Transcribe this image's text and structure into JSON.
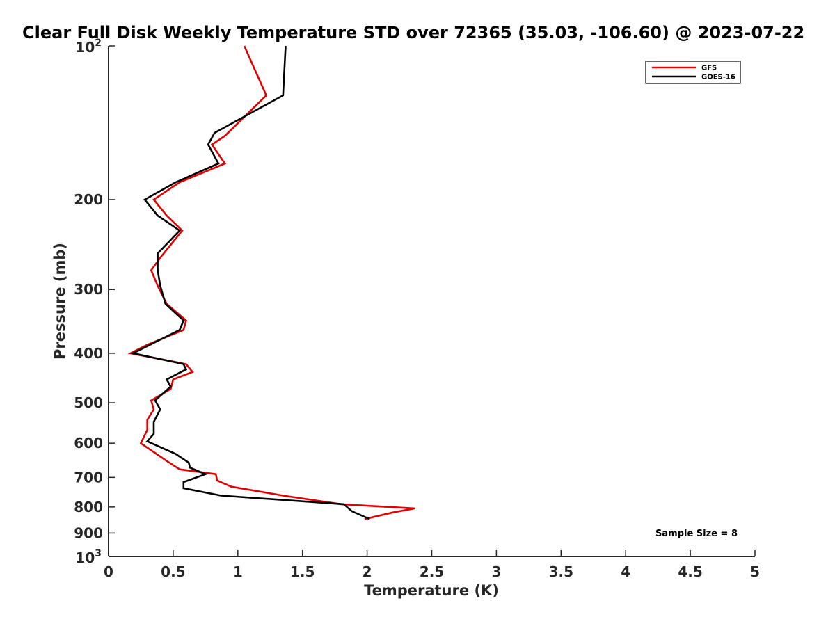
{
  "chart_data": {
    "type": "line",
    "title": "Clear Full Disk Weekly Temperature STD over 72365 (35.03, -106.60) @ 2023-07-22",
    "xlabel": "Temperature (K)",
    "ylabel": "Pressure (mb)",
    "xlim": [
      0,
      5
    ],
    "ylim": [
      100,
      1000
    ],
    "y_scale": "log",
    "y_reversed": true,
    "grid": false,
    "legend_position": "top-right",
    "x_ticks": [
      {
        "value": 0,
        "label": "0"
      },
      {
        "value": 0.5,
        "label": "0.5"
      },
      {
        "value": 1,
        "label": "1"
      },
      {
        "value": 1.5,
        "label": "1.5"
      },
      {
        "value": 2,
        "label": "2"
      },
      {
        "value": 2.5,
        "label": "2.5"
      },
      {
        "value": 3,
        "label": "3"
      },
      {
        "value": 3.5,
        "label": "3.5"
      },
      {
        "value": 4,
        "label": "4"
      },
      {
        "value": 4.5,
        "label": "4.5"
      },
      {
        "value": 5,
        "label": "5"
      }
    ],
    "y_ticks": [
      {
        "value": 100,
        "base": "10",
        "exp": "2"
      },
      {
        "value": 200,
        "label": "200"
      },
      {
        "value": 300,
        "label": "300"
      },
      {
        "value": 400,
        "label": "400"
      },
      {
        "value": 500,
        "label": "500"
      },
      {
        "value": 600,
        "label": "600"
      },
      {
        "value": 700,
        "label": "700"
      },
      {
        "value": 800,
        "label": "800"
      },
      {
        "value": 900,
        "label": "900"
      },
      {
        "value": 1000,
        "base": "10",
        "exp": "3"
      }
    ],
    "series": [
      {
        "name": "GFS",
        "color": "#e00000",
        "points": [
          [
            1.05,
            100
          ],
          [
            1.22,
            125
          ],
          [
            0.9,
            150
          ],
          [
            0.8,
            156
          ],
          [
            0.9,
            170
          ],
          [
            0.55,
            185
          ],
          [
            0.35,
            200
          ],
          [
            0.45,
            215
          ],
          [
            0.57,
            230
          ],
          [
            0.4,
            260
          ],
          [
            0.33,
            275
          ],
          [
            0.38,
            295
          ],
          [
            0.45,
            320
          ],
          [
            0.6,
            345
          ],
          [
            0.58,
            360
          ],
          [
            0.3,
            385
          ],
          [
            0.17,
            400
          ],
          [
            0.6,
            420
          ],
          [
            0.65,
            435
          ],
          [
            0.5,
            450
          ],
          [
            0.48,
            470
          ],
          [
            0.33,
            495
          ],
          [
            0.35,
            515
          ],
          [
            0.3,
            540
          ],
          [
            0.3,
            565
          ],
          [
            0.25,
            600
          ],
          [
            0.45,
            650
          ],
          [
            0.55,
            675
          ],
          [
            0.83,
            690
          ],
          [
            0.84,
            710
          ],
          [
            0.95,
            730
          ],
          [
            1.35,
            760
          ],
          [
            1.8,
            790
          ],
          [
            2.37,
            805
          ],
          [
            2.2,
            820
          ],
          [
            1.98,
            845
          ]
        ]
      },
      {
        "name": "GOES-16",
        "color": "#000000",
        "points": [
          [
            1.37,
            100
          ],
          [
            1.35,
            125
          ],
          [
            0.82,
            148
          ],
          [
            0.77,
            156
          ],
          [
            0.85,
            170
          ],
          [
            0.52,
            185
          ],
          [
            0.28,
            200
          ],
          [
            0.38,
            215
          ],
          [
            0.55,
            230
          ],
          [
            0.38,
            255
          ],
          [
            0.38,
            275
          ],
          [
            0.4,
            295
          ],
          [
            0.44,
            320
          ],
          [
            0.58,
            345
          ],
          [
            0.55,
            360
          ],
          [
            0.32,
            385
          ],
          [
            0.19,
            400
          ],
          [
            0.58,
            420
          ],
          [
            0.6,
            430
          ],
          [
            0.45,
            450
          ],
          [
            0.48,
            465
          ],
          [
            0.36,
            495
          ],
          [
            0.4,
            515
          ],
          [
            0.35,
            545
          ],
          [
            0.35,
            575
          ],
          [
            0.3,
            595
          ],
          [
            0.52,
            630
          ],
          [
            0.62,
            655
          ],
          [
            0.63,
            670
          ],
          [
            0.75,
            690
          ],
          [
            0.58,
            715
          ],
          [
            0.58,
            735
          ],
          [
            0.87,
            760
          ],
          [
            1.82,
            790
          ],
          [
            1.88,
            815
          ],
          [
            2.02,
            845
          ]
        ]
      }
    ],
    "annotation": "Sample Size = 8"
  }
}
